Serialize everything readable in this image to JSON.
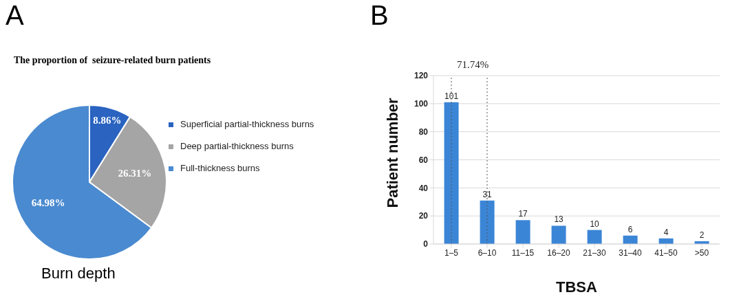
{
  "chart_data": [
    {
      "type": "pie",
      "title": "The proportion of  seizure-related burn patients",
      "xlabel": "Burn depth",
      "annotations": [
        "A"
      ],
      "categories": [
        "Superficial partial-thickness burns",
        "Deep partial-thickness burns",
        "Full-thickness burns"
      ],
      "values": [
        8.86,
        26.31,
        64.98
      ],
      "value_labels": [
        "8.86%",
        "26.31%",
        "64.98%"
      ],
      "colors": [
        "#2a63c0",
        "#a5a5a5",
        "#4a8ad0"
      ],
      "legend": "right"
    },
    {
      "type": "bar",
      "xlabel": "TBSA",
      "ylabel": "Patient number",
      "annotations": [
        "B"
      ],
      "categories": [
        "1–5",
        "6–10",
        "11–15",
        "16–20",
        "21–30",
        "31–40",
        "41–50",
        ">50"
      ],
      "values": [
        101,
        31,
        17,
        13,
        10,
        6,
        4,
        2
      ],
      "color": "#3b85d6",
      "ylim": [
        0,
        120
      ],
      "yticks": [
        0,
        20,
        40,
        60,
        80,
        100,
        120
      ],
      "grid": "y",
      "data_labels": true,
      "ref_lines": [
        {
          "axis": "x",
          "value": "1–5",
          "label": "71.74%",
          "line_style": "dotted"
        },
        {
          "axis": "x",
          "value": "6–10",
          "line_style": "dotted"
        }
      ]
    }
  ]
}
